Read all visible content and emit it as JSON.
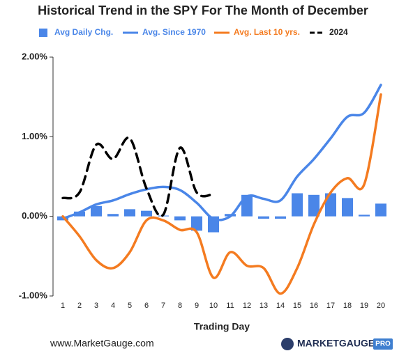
{
  "chart_data": {
    "type": "combo",
    "title": "Historical Trend in the SPY For The Month of December",
    "x_label": "Trading Day",
    "categories": [
      "1",
      "2",
      "3",
      "4",
      "5",
      "6",
      "7",
      "8",
      "9",
      "10",
      "11",
      "12",
      "13",
      "14",
      "15",
      "16",
      "17",
      "18",
      "19",
      "20"
    ],
    "ylim": [
      -1,
      2
    ],
    "yticks": [
      {
        "value": -1,
        "label": "-1.00%"
      },
      {
        "value": 0,
        "label": "0.00%"
      },
      {
        "value": 1,
        "label": "1.00%"
      },
      {
        "value": 2,
        "label": "2.00%"
      }
    ],
    "grid": false,
    "legend": "top",
    "series": [
      {
        "name": "Avg Daily Chg.",
        "style": "bar",
        "color": "#4a86e8",
        "values": [
          -0.05,
          0.06,
          0.13,
          0.03,
          0.09,
          0.07,
          0.01,
          -0.05,
          -0.18,
          -0.2,
          0.03,
          0.27,
          -0.03,
          -0.03,
          0.29,
          0.27,
          0.29,
          0.23,
          0.02,
          0.16
        ]
      },
      {
        "name": "Avg. Since 1970",
        "style": "line",
        "color": "#4a86e8",
        "values": [
          -0.03,
          0.05,
          0.15,
          0.2,
          0.28,
          0.34,
          0.37,
          0.33,
          0.17,
          -0.03,
          0.0,
          0.25,
          0.22,
          0.2,
          0.5,
          0.72,
          0.98,
          1.25,
          1.3,
          1.65
        ]
      },
      {
        "name": "Avg. Last 10 yrs.",
        "style": "line",
        "color": "#f47b20",
        "values": [
          0.0,
          -0.25,
          -0.55,
          -0.65,
          -0.45,
          -0.05,
          -0.05,
          -0.17,
          -0.2,
          -0.77,
          -0.45,
          -0.62,
          -0.65,
          -0.97,
          -0.65,
          -0.1,
          0.3,
          0.48,
          0.4,
          1.53
        ]
      },
      {
        "name": "2024",
        "style": "dashed",
        "color": "#000000",
        "values": [
          0.23,
          0.3,
          0.9,
          0.72,
          0.98,
          0.35,
          0.02,
          0.86,
          0.3,
          0.28,
          null,
          null,
          null,
          null,
          null,
          null,
          null,
          null,
          null,
          null
        ]
      }
    ]
  },
  "footer": {
    "website": "www.MarketGauge.com",
    "logo": "MARKETGAUGE",
    "logo_badge": "PRO"
  }
}
